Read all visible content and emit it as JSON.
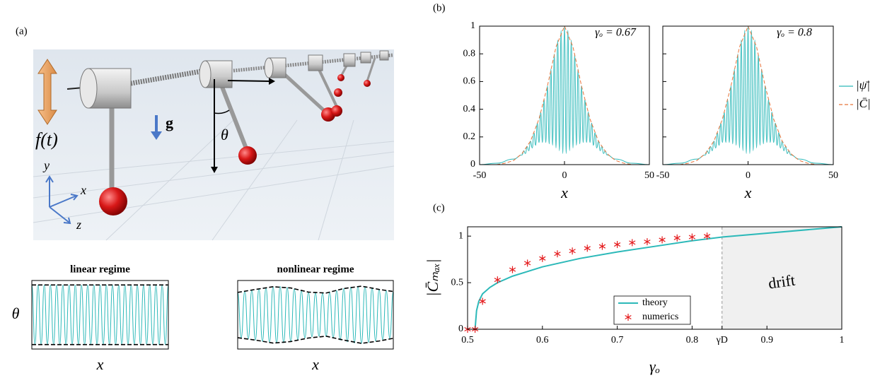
{
  "panels": [
    "(a)",
    "(b)",
    "(c)"
  ],
  "illustration": {
    "labels": [
      "f(t)",
      "g",
      "θ",
      "y",
      "x",
      "z"
    ]
  },
  "chart_data": [
    {
      "type": "line",
      "title": "linear regime",
      "ylabel": "θ",
      "xlabel": "x",
      "x": [
        0,
        1,
        2,
        3,
        4,
        5,
        6,
        7,
        8,
        9,
        10,
        11,
        12,
        13,
        14,
        15,
        16,
        17,
        18,
        19,
        20,
        21,
        22,
        23,
        24,
        25,
        26,
        27,
        28,
        29,
        30,
        31,
        32,
        33,
        34,
        35,
        36,
        37,
        38,
        39,
        40,
        41,
        42,
        43,
        44
      ],
      "xlim": [
        0,
        44
      ],
      "ylim": [
        -1.15,
        1.15
      ],
      "series": [
        {
          "color": "#2cb9b9",
          "values": [
            1,
            -1,
            1,
            -1,
            1,
            -1,
            1,
            -1,
            1,
            -1,
            1,
            -1,
            1,
            -1,
            1,
            -1,
            1,
            -1,
            1,
            -1,
            1,
            -1,
            1,
            -1,
            1,
            -1,
            1,
            -1,
            1,
            -1,
            1,
            -1,
            1,
            -1,
            1,
            -1,
            1,
            -1,
            1,
            -1,
            1,
            -1,
            1,
            -1,
            1
          ]
        },
        {
          "color": "#000000",
          "dashed": true,
          "x": [
            0,
            44
          ],
          "values": [
            1,
            1
          ]
        },
        {
          "color": "#000000",
          "dashed": true,
          "x": [
            0,
            44
          ],
          "values": [
            -1,
            -1
          ]
        }
      ]
    },
    {
      "type": "line",
      "title": "nonlinear regime",
      "xlabel": "x",
      "x": [
        0,
        1,
        2,
        3,
        4,
        5,
        6,
        7,
        8,
        9,
        10,
        11,
        12,
        13,
        14,
        15,
        16,
        17,
        18,
        19,
        20,
        21,
        22,
        23,
        24,
        25,
        26,
        27,
        28,
        29,
        30,
        31,
        32,
        33,
        34,
        35,
        36,
        37,
        38,
        39,
        40,
        41,
        42,
        43,
        44
      ],
      "xlim": [
        0,
        44
      ],
      "ylim": [
        -1.15,
        1.15
      ],
      "series": [
        {
          "color": "#2cb9b9",
          "values": [
            0.75,
            -0.77,
            0.79,
            -0.81,
            0.83,
            -0.85,
            0.87,
            -0.89,
            0.91,
            -0.93,
            0.94,
            -0.95,
            0.95,
            -0.94,
            0.92,
            -0.9,
            0.87,
            -0.84,
            0.81,
            -0.78,
            0.76,
            -0.74,
            0.73,
            -0.72,
            0.72,
            -0.73,
            0.75,
            -0.78,
            0.81,
            -0.85,
            0.88,
            -0.91,
            0.93,
            -0.95,
            0.96,
            -0.96,
            0.95,
            -0.93,
            0.91,
            -0.88,
            0.85,
            -0.83,
            0.81,
            -0.79,
            0.78
          ]
        },
        {
          "color": "#000000",
          "dashed": true,
          "x": [
            0,
            5,
            10,
            15,
            20,
            25,
            30,
            35,
            40,
            44
          ],
          "values": [
            0.75,
            0.85,
            0.94,
            0.9,
            0.76,
            0.73,
            0.88,
            0.96,
            0.85,
            0.78
          ]
        },
        {
          "color": "#000000",
          "dashed": true,
          "x": [
            0,
            5,
            10,
            15,
            20,
            25,
            30,
            35,
            40,
            44
          ],
          "values": [
            -0.77,
            -0.85,
            -0.95,
            -0.9,
            -0.78,
            -0.72,
            -0.85,
            -0.96,
            -0.88,
            -0.79
          ]
        }
      ]
    },
    {
      "type": "line",
      "annotation": "γₒ = 0.67",
      "xlabel": "x",
      "xlim": [
        -50,
        50
      ],
      "ylim": [
        0,
        1
      ],
      "xticks": [
        -50,
        0,
        50
      ],
      "yticks": [
        0,
        0.2,
        0.4,
        0.6,
        0.8,
        1
      ],
      "series": [
        {
          "color": "#2cb9b9",
          "x": [
            -50,
            -40,
            -30,
            -25,
            -24,
            -23,
            -22,
            -21,
            -20,
            -19,
            -18,
            -17,
            -16,
            -15,
            -14,
            -13,
            -12,
            -11,
            -10,
            -9,
            -8,
            -7,
            -6,
            -5,
            -4,
            -3,
            -2,
            -1,
            0,
            1,
            2,
            3,
            4,
            5,
            6,
            7,
            8,
            9,
            10,
            11,
            12,
            13,
            14,
            15,
            16,
            17,
            18,
            19,
            20,
            21,
            22,
            23,
            24,
            25,
            30,
            40,
            50
          ],
          "values": [
            0,
            0.01,
            0.04,
            0.07,
            0.1,
            0.08,
            0.13,
            0.1,
            0.17,
            0.12,
            0.23,
            0.14,
            0.3,
            0.16,
            0.38,
            0.16,
            0.47,
            0.16,
            0.57,
            0.15,
            0.69,
            0.14,
            0.8,
            0.12,
            0.9,
            0.1,
            0.97,
            0.08,
            1,
            0.08,
            0.97,
            0.1,
            0.9,
            0.12,
            0.8,
            0.14,
            0.69,
            0.15,
            0.57,
            0.16,
            0.47,
            0.16,
            0.38,
            0.16,
            0.3,
            0.14,
            0.23,
            0.12,
            0.17,
            0.1,
            0.13,
            0.08,
            0.1,
            0.07,
            0.04,
            0.01,
            0
          ]
        },
        {
          "color": "#e8743b",
          "dashed": true,
          "x": [
            -50,
            -45,
            -40,
            -35,
            -30,
            -25,
            -20,
            -15,
            -10,
            -5,
            0,
            5,
            10,
            15,
            20,
            25,
            30,
            35,
            40,
            45,
            50
          ],
          "values": [
            0,
            0,
            0,
            0.01,
            0.03,
            0.08,
            0.17,
            0.33,
            0.57,
            0.85,
            1,
            0.85,
            0.57,
            0.33,
            0.17,
            0.08,
            0.03,
            0.01,
            0,
            0,
            0
          ]
        }
      ]
    },
    {
      "type": "line",
      "annotation": "γₒ = 0.8",
      "xlabel": "x",
      "legend": "outside right",
      "xlim": [
        -50,
        50
      ],
      "ylim": [
        0,
        1
      ],
      "xticks": [
        -50,
        0,
        50
      ],
      "series": [
        {
          "name": "|ψ̄|",
          "color": "#2cb9b9",
          "x": [
            -50,
            -40,
            -30,
            -25,
            -24,
            -23,
            -22,
            -21,
            -20,
            -19,
            -18,
            -17,
            -16,
            -15,
            -14,
            -13,
            -12,
            -11,
            -10,
            -9,
            -8,
            -7,
            -6,
            -5,
            -4,
            -3,
            -2,
            -1,
            0,
            1,
            2,
            3,
            4,
            5,
            6,
            7,
            8,
            9,
            10,
            11,
            12,
            13,
            14,
            15,
            16,
            17,
            18,
            19,
            20,
            21,
            22,
            23,
            24,
            25,
            30,
            40,
            50
          ],
          "values": [
            0,
            0.01,
            0.04,
            0.07,
            0.1,
            0.08,
            0.13,
            0.1,
            0.17,
            0.12,
            0.23,
            0.14,
            0.3,
            0.16,
            0.38,
            0.16,
            0.47,
            0.16,
            0.57,
            0.15,
            0.69,
            0.14,
            0.8,
            0.12,
            0.9,
            0.1,
            0.97,
            0.08,
            1,
            0.08,
            0.97,
            0.1,
            0.9,
            0.12,
            0.8,
            0.14,
            0.69,
            0.15,
            0.57,
            0.16,
            0.47,
            0.16,
            0.38,
            0.16,
            0.3,
            0.14,
            0.23,
            0.12,
            0.17,
            0.1,
            0.13,
            0.08,
            0.1,
            0.07,
            0.04,
            0.01,
            0
          ]
        },
        {
          "name": "|C̄|",
          "color": "#e8743b",
          "dashed": true,
          "x": [
            -50,
            -45,
            -40,
            -35,
            -30,
            -25,
            -20,
            -15,
            -10,
            -5,
            0,
            5,
            10,
            15,
            20,
            25,
            30,
            35,
            40,
            45,
            50
          ],
          "values": [
            0,
            0,
            0,
            0.01,
            0.03,
            0.08,
            0.17,
            0.33,
            0.57,
            0.85,
            1,
            0.85,
            0.57,
            0.33,
            0.17,
            0.08,
            0.03,
            0.01,
            0,
            0,
            0
          ]
        }
      ]
    },
    {
      "type": "line",
      "xlabel": "γₒ",
      "ylabel": "|C̄ₘₐₓ|",
      "region_label": "drift",
      "legend": "lower center",
      "xlim": [
        0.5,
        1
      ],
      "ylim": [
        0,
        1.1
      ],
      "xticks": [
        0.5,
        0.6,
        0.7,
        0.8,
        {
          "value": 0.84,
          "label": "γD"
        },
        0.9,
        1
      ],
      "yticks": [
        0,
        0.5,
        1
      ],
      "series": [
        {
          "name": "theory",
          "color": "#2cb9b9",
          "x": [
            0.51,
            0.512,
            0.515,
            0.52,
            0.53,
            0.54,
            0.56,
            0.58,
            0.6,
            0.65,
            0.7,
            0.75,
            0.8,
            0.84,
            1
          ],
          "values": [
            0,
            0.2,
            0.3,
            0.38,
            0.45,
            0.5,
            0.57,
            0.62,
            0.67,
            0.76,
            0.83,
            0.89,
            0.95,
            0.99,
            1.1
          ]
        },
        {
          "name": "numerics",
          "color": "#e41a1c",
          "marker": "asterisk",
          "x": [
            0.5,
            0.51,
            0.52,
            0.54,
            0.56,
            0.58,
            0.6,
            0.62,
            0.64,
            0.66,
            0.68,
            0.7,
            0.72,
            0.74,
            0.76,
            0.78,
            0.8,
            0.82
          ],
          "values": [
            0,
            0,
            0.3,
            0.53,
            0.64,
            0.71,
            0.76,
            0.81,
            0.84,
            0.87,
            0.89,
            0.91,
            0.93,
            0.94,
            0.96,
            0.98,
            0.99,
            1
          ]
        }
      ]
    }
  ]
}
